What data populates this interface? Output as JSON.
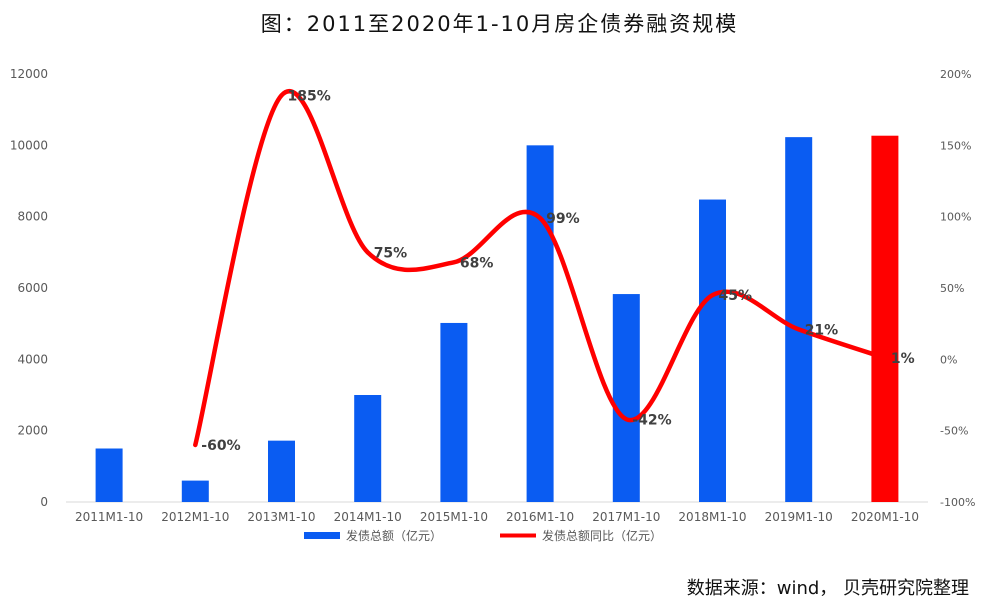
{
  "chart_data": {
    "type": "bar",
    "title": "图：2011至2020年1-10月房企债券融资规模",
    "source": "数据来源：wind， 贝壳研究院整理",
    "categories": [
      "2011M1-10",
      "2012M1-10",
      "2013M1-10",
      "2014M1-10",
      "2015M1-10",
      "2016M1-10",
      "2017M1-10",
      "2018M1-10",
      "2019M1-10",
      "2020M1-10"
    ],
    "left_axis": {
      "ylim": [
        0,
        12000
      ],
      "ticks": [
        "0",
        "2000",
        "4000",
        "6000",
        "8000",
        "10000",
        "12000"
      ]
    },
    "right_axis": {
      "ylim": [
        -100,
        200
      ],
      "ticks": [
        "-100%",
        "-50%",
        "0%",
        "50%",
        "100%",
        "150%",
        "200%"
      ]
    },
    "grid": false,
    "legend_position": "bottom",
    "series": [
      {
        "name": "发债总额（亿元）",
        "type": "bar",
        "axis": "left",
        "color": "#0A5CF2",
        "highlight_color": "#FF0000",
        "highlight_index": 9,
        "values": [
          1500,
          600,
          1720,
          3000,
          5020,
          10000,
          5830,
          8480,
          10230,
          10270
        ]
      },
      {
        "name": "发债总额同比（亿元）",
        "type": "line",
        "axis": "right",
        "color": "#FF0000",
        "values": [
          null,
          -60,
          185,
          75,
          68,
          99,
          -42,
          45,
          21,
          1
        ],
        "labels": [
          null,
          "-60%",
          "185%",
          "75%",
          "68%",
          "99%",
          "-42%",
          "45%",
          "21%",
          "1%"
        ]
      }
    ]
  }
}
